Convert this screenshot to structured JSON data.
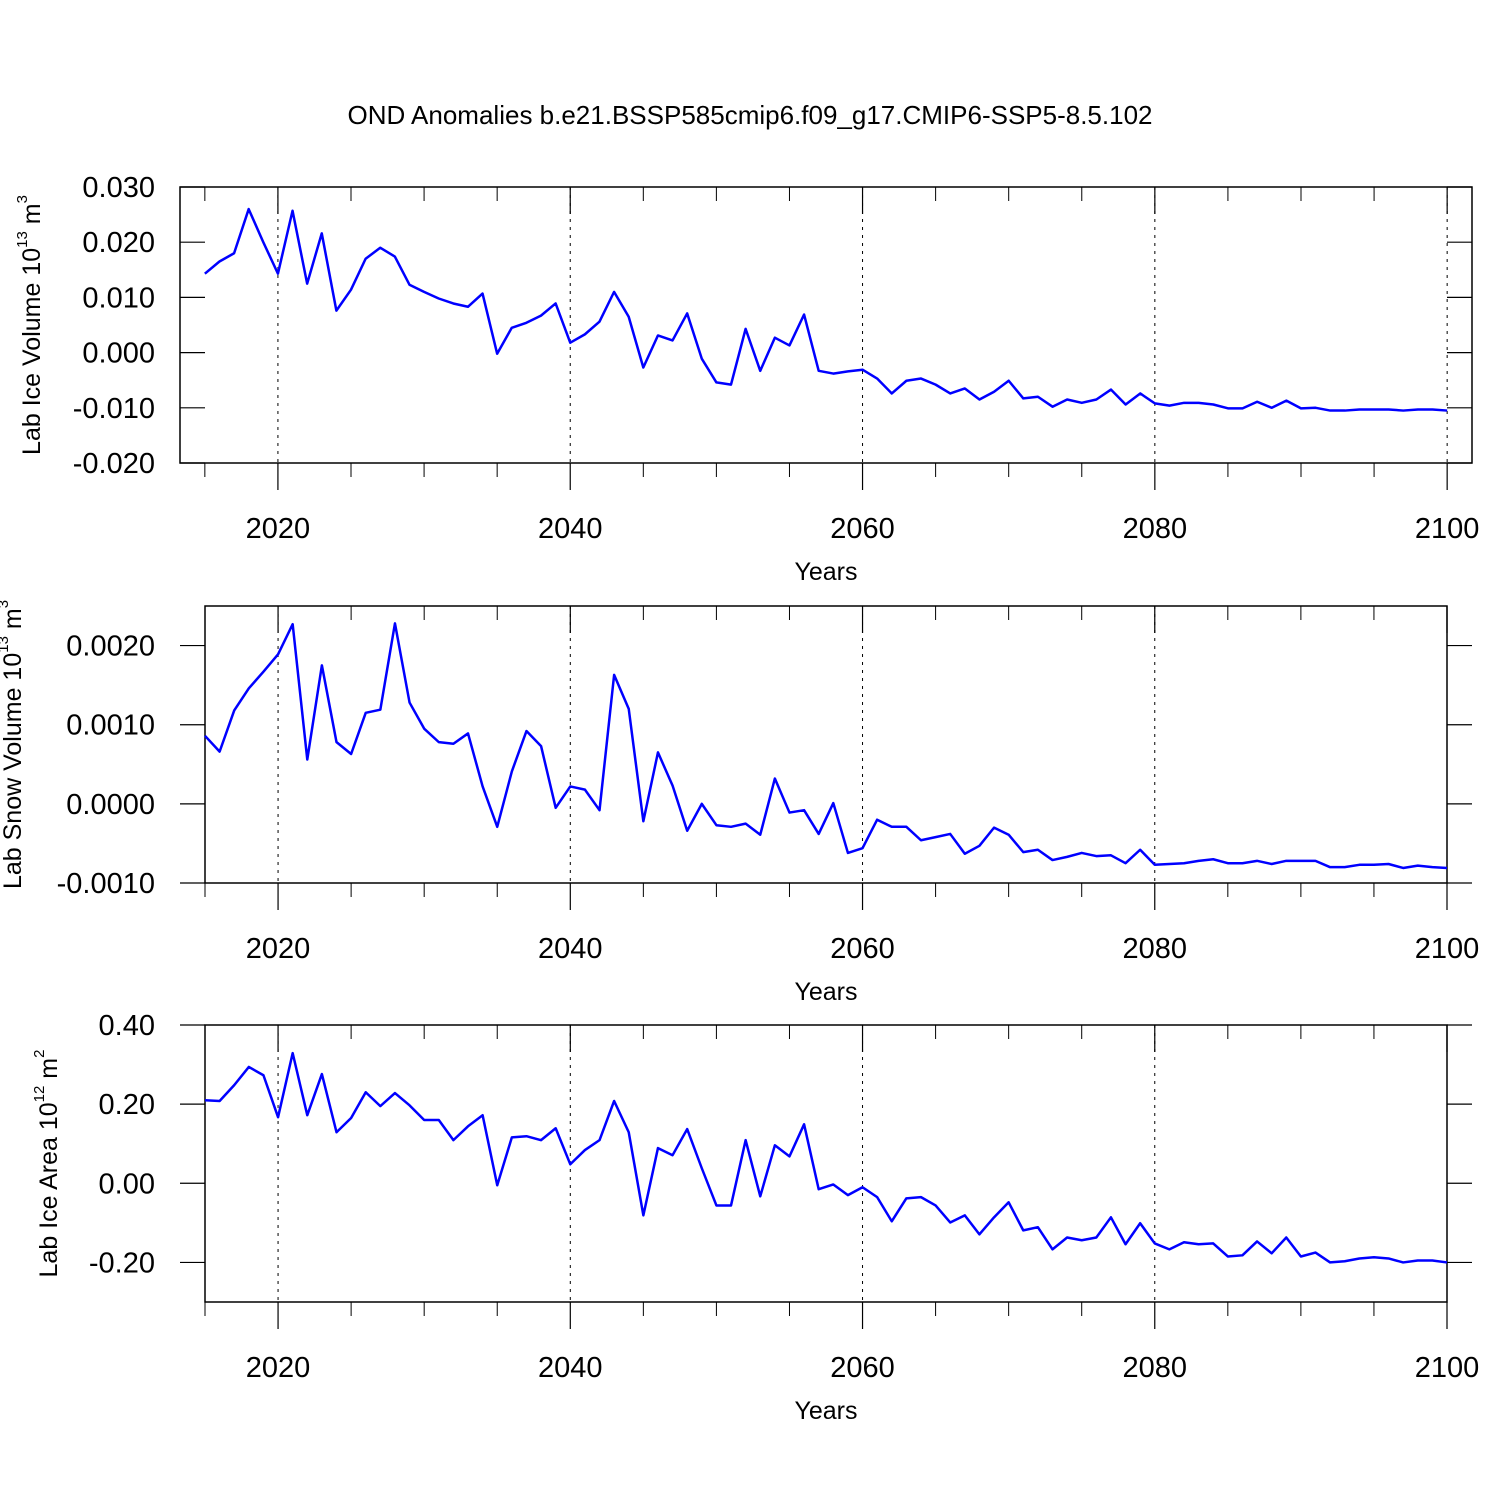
{
  "chart_data": [
    {
      "type": "line",
      "title": "OND Anomalies b.e21.BSSP585cmip6.f09_g17.CMIP6-SSP5-8.5.102",
      "xlabel": "Years",
      "ylabel": "Lab Ice Volume 10",
      "ylabel_exponent": "13",
      "ylabel_unit": " m",
      "ylabel_unit_exponent": "3",
      "color": "#0000ff",
      "grid": true,
      "xlim": [
        2013.3,
        2101.7
      ],
      "xticks": [
        2020,
        2040,
        2060,
        2080,
        2100
      ],
      "xminorticks": [
        2015,
        2025,
        2030,
        2035,
        2045,
        2050,
        2055,
        2065,
        2070,
        2075,
        2085,
        2090,
        2095
      ],
      "ylim": [
        -0.02,
        0.03
      ],
      "yticks": [
        {
          "value": -0.02,
          "label": "-0.020"
        },
        {
          "value": -0.01,
          "label": "-0.010"
        },
        {
          "value": 0,
          "label": "0.000"
        },
        {
          "value": 0.01,
          "label": "0.010"
        },
        {
          "value": 0.02,
          "label": "0.020"
        },
        {
          "value": 0.03,
          "label": "0.030"
        }
      ],
      "x": [
        2015,
        2016,
        2017,
        2018,
        2019,
        2020,
        2021,
        2022,
        2023,
        2024,
        2025,
        2026,
        2027,
        2028,
        2029,
        2030,
        2031,
        2032,
        2033,
        2034,
        2035,
        2036,
        2037,
        2038,
        2039,
        2040,
        2041,
        2042,
        2043,
        2044,
        2045,
        2046,
        2047,
        2048,
        2049,
        2050,
        2051,
        2052,
        2053,
        2054,
        2055,
        2056,
        2057,
        2058,
        2059,
        2060,
        2061,
        2062,
        2063,
        2064,
        2065,
        2066,
        2067,
        2068,
        2069,
        2070,
        2071,
        2072,
        2073,
        2074,
        2075,
        2076,
        2077,
        2078,
        2079,
        2080,
        2081,
        2082,
        2083,
        2084,
        2085,
        2086,
        2087,
        2088,
        2089,
        2090,
        2091,
        2092,
        2093,
        2094,
        2095,
        2096,
        2097,
        2098,
        2099,
        2100
      ],
      "values": [
        0.0143,
        0.0165,
        0.018,
        0.026,
        0.02,
        0.0143,
        0.0257,
        0.0125,
        0.0216,
        0.0076,
        0.0114,
        0.017,
        0.019,
        0.0174,
        0.0123,
        0.011,
        0.0098,
        0.0089,
        0.0083,
        0.0107,
        -0.0002,
        0.0045,
        0.0054,
        0.0067,
        0.0089,
        0.0018,
        0.0033,
        0.0056,
        0.011,
        0.0065,
        -0.0027,
        0.0031,
        0.0022,
        0.0071,
        -0.0011,
        -0.0054,
        -0.0058,
        0.0043,
        -0.0033,
        0.0027,
        0.0013,
        0.0069,
        -0.0033,
        -0.0038,
        -0.0034,
        -0.0031,
        -0.0047,
        -0.0074,
        -0.0051,
        -0.0047,
        -0.0058,
        -0.0074,
        -0.0065,
        -0.0085,
        -0.0071,
        -0.0051,
        -0.0083,
        -0.008,
        -0.0098,
        -0.0085,
        -0.0091,
        -0.0085,
        -0.0067,
        -0.0094,
        -0.0074,
        -0.0092,
        -0.0096,
        -0.0091,
        -0.0091,
        -0.0094,
        -0.0101,
        -0.0101,
        -0.0089,
        -0.01,
        -0.0087,
        -0.0101,
        -0.01,
        -0.0105,
        -0.0105,
        -0.0103,
        -0.0103,
        -0.0103,
        -0.0105,
        -0.0103,
        -0.0103,
        -0.0105
      ]
    },
    {
      "type": "line",
      "xlabel": "Years",
      "ylabel": "Lab Snow Volume 10",
      "ylabel_exponent": "13",
      "ylabel_unit": " m",
      "ylabel_unit_exponent": "3",
      "color": "#0000ff",
      "grid": true,
      "xlim": [
        2015,
        2100
      ],
      "xticks": [
        2020,
        2040,
        2060,
        2080,
        2100
      ],
      "xminorticks": [
        2015,
        2025,
        2030,
        2035,
        2045,
        2050,
        2055,
        2065,
        2070,
        2075,
        2085,
        2090,
        2095
      ],
      "ylim": [
        -0.001,
        0.0025
      ],
      "yticks": [
        {
          "value": -0.001,
          "label": "-0.0010"
        },
        {
          "value": 0,
          "label": "0.0000"
        },
        {
          "value": 0.001,
          "label": "0.0010"
        },
        {
          "value": 0.002,
          "label": "0.0020"
        }
      ],
      "x": [
        2015,
        2016,
        2017,
        2018,
        2019,
        2020,
        2021,
        2022,
        2023,
        2024,
        2025,
        2026,
        2027,
        2028,
        2029,
        2030,
        2031,
        2032,
        2033,
        2034,
        2035,
        2036,
        2037,
        2038,
        2039,
        2040,
        2041,
        2042,
        2043,
        2044,
        2045,
        2046,
        2047,
        2048,
        2049,
        2050,
        2051,
        2052,
        2053,
        2054,
        2055,
        2056,
        2057,
        2058,
        2059,
        2060,
        2061,
        2062,
        2063,
        2064,
        2065,
        2066,
        2067,
        2068,
        2069,
        2070,
        2071,
        2072,
        2073,
        2074,
        2075,
        2076,
        2077,
        2078,
        2079,
        2080,
        2081,
        2082,
        2083,
        2084,
        2085,
        2086,
        2087,
        2088,
        2089,
        2090,
        2091,
        2092,
        2093,
        2094,
        2095,
        2096,
        2097,
        2098,
        2099,
        2100
      ],
      "values": [
        0.00086,
        0.00066,
        0.00118,
        0.00146,
        0.00167,
        0.00189,
        0.00227,
        0.00056,
        0.00175,
        0.00078,
        0.00063,
        0.00115,
        0.00119,
        0.00228,
        0.00128,
        0.00095,
        0.00078,
        0.00076,
        0.00089,
        0.00022,
        -0.00029,
        0.00041,
        0.00092,
        0.00073,
        -5e-05,
        0.00022,
        0.00018,
        -8e-05,
        0.00163,
        0.0012,
        -0.00022,
        0.00065,
        0.00023,
        -0.00034,
        0,
        -0.00027,
        -0.00029,
        -0.00025,
        -0.00039,
        0.00032,
        -0.00011,
        -8e-05,
        -0.00038,
        1e-05,
        -0.00062,
        -0.00056,
        -0.0002,
        -0.00029,
        -0.00029,
        -0.00046,
        -0.00042,
        -0.00038,
        -0.00063,
        -0.00053,
        -0.0003,
        -0.00039,
        -0.00061,
        -0.00058,
        -0.00071,
        -0.00067,
        -0.00062,
        -0.00066,
        -0.00065,
        -0.00075,
        -0.00058,
        -0.00077,
        -0.00076,
        -0.00075,
        -0.00072,
        -0.0007,
        -0.00075,
        -0.00075,
        -0.00072,
        -0.00076,
        -0.00072,
        -0.00072,
        -0.00072,
        -0.0008,
        -0.0008,
        -0.00077,
        -0.00077,
        -0.00076,
        -0.00081,
        -0.00078,
        -0.0008,
        -0.00081
      ]
    },
    {
      "type": "line",
      "xlabel": "Years",
      "ylabel": "Lab Ice Area 10",
      "ylabel_exponent": "12",
      "ylabel_unit": " m",
      "ylabel_unit_exponent": "2",
      "color": "#0000ff",
      "grid": true,
      "xlim": [
        2015,
        2100
      ],
      "xticks": [
        2020,
        2040,
        2060,
        2080,
        2100
      ],
      "xminorticks": [
        2015,
        2025,
        2030,
        2035,
        2045,
        2050,
        2055,
        2065,
        2070,
        2075,
        2085,
        2090,
        2095
      ],
      "ylim": [
        -0.3,
        0.4
      ],
      "yticks": [
        {
          "value": -0.2,
          "label": "-0.20"
        },
        {
          "value": 0,
          "label": "0.00"
        },
        {
          "value": 0.2,
          "label": "0.20"
        },
        {
          "value": 0.4,
          "label": "0.40"
        }
      ],
      "x": [
        2015,
        2016,
        2017,
        2018,
        2019,
        2020,
        2021,
        2022,
        2023,
        2024,
        2025,
        2026,
        2027,
        2028,
        2029,
        2030,
        2031,
        2032,
        2033,
        2034,
        2035,
        2036,
        2037,
        2038,
        2039,
        2040,
        2041,
        2042,
        2043,
        2044,
        2045,
        2046,
        2047,
        2048,
        2049,
        2050,
        2051,
        2052,
        2053,
        2054,
        2055,
        2056,
        2057,
        2058,
        2059,
        2060,
        2061,
        2062,
        2063,
        2064,
        2065,
        2066,
        2067,
        2068,
        2069,
        2070,
        2071,
        2072,
        2073,
        2074,
        2075,
        2076,
        2077,
        2078,
        2079,
        2080,
        2081,
        2082,
        2083,
        2084,
        2085,
        2086,
        2087,
        2088,
        2089,
        2090,
        2091,
        2092,
        2093,
        2094,
        2095,
        2096,
        2097,
        2098,
        2099,
        2100
      ],
      "values": [
        0.21,
        0.208,
        0.248,
        0.294,
        0.273,
        0.167,
        0.329,
        0.172,
        0.276,
        0.129,
        0.165,
        0.23,
        0.195,
        0.228,
        0.197,
        0.16,
        0.16,
        0.109,
        0.144,
        0.172,
        -0.005,
        0.116,
        0.119,
        0.109,
        0.139,
        0.048,
        0.084,
        0.109,
        0.208,
        0.129,
        -0.081,
        0.089,
        0.071,
        0.137,
        0.038,
        -0.056,
        -0.056,
        0.109,
        -0.033,
        0.096,
        0.068,
        0.149,
        -0.015,
        -0.003,
        -0.03,
        -0.01,
        -0.035,
        -0.096,
        -0.038,
        -0.035,
        -0.056,
        -0.099,
        -0.081,
        -0.129,
        -0.086,
        -0.048,
        -0.119,
        -0.111,
        -0.167,
        -0.137,
        -0.144,
        -0.137,
        -0.086,
        -0.154,
        -0.101,
        -0.152,
        -0.167,
        -0.149,
        -0.154,
        -0.152,
        -0.185,
        -0.182,
        -0.147,
        -0.177,
        -0.137,
        -0.185,
        -0.175,
        -0.2,
        -0.197,
        -0.19,
        -0.187,
        -0.19,
        -0.2,
        -0.195,
        -0.195,
        -0.2
      ]
    }
  ]
}
